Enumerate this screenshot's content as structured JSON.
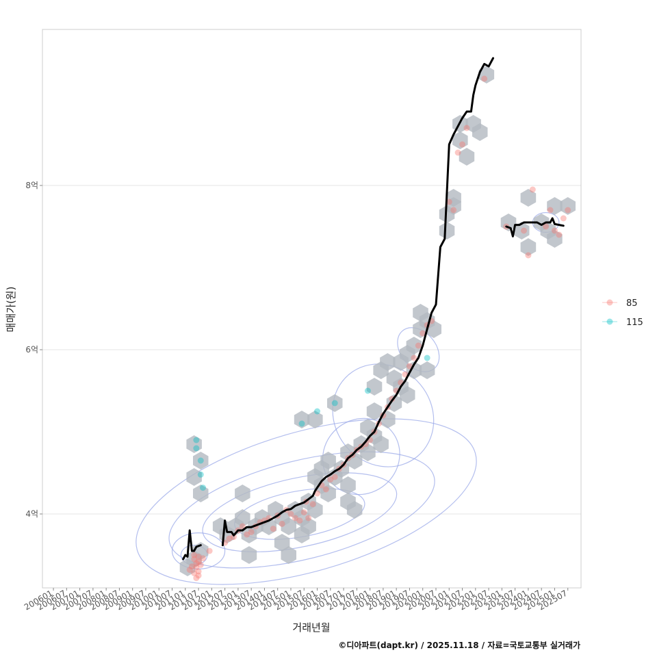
{
  "chart_data": {
    "type": "scatter",
    "title": "",
    "xlabel": "거래년월",
    "ylabel": "매매가(원)",
    "caption": "©디아파트(dapt.kr) / 2025.11.18 / 자료=국토교통부 실거래가",
    "x_unit": "months since 2006-01",
    "xlim": [
      -5,
      240
    ],
    "ylim": [
      3.1,
      9.9
    ],
    "x_ticks": [
      {
        "label": "200601",
        "x": 0
      },
      {
        "label": "200607",
        "x": 6
      },
      {
        "label": "200701",
        "x": 12
      },
      {
        "label": "200707",
        "x": 18
      },
      {
        "label": "200801",
        "x": 24
      },
      {
        "label": "200807",
        "x": 30
      },
      {
        "label": "200901",
        "x": 36
      },
      {
        "label": "200907",
        "x": 42
      },
      {
        "label": "201001",
        "x": 48
      },
      {
        "label": "201007",
        "x": 54
      },
      {
        "label": "201101",
        "x": 60
      },
      {
        "label": "201107",
        "x": 66
      },
      {
        "label": "201201",
        "x": 72
      },
      {
        "label": "201207",
        "x": 78
      },
      {
        "label": "201301",
        "x": 84
      },
      {
        "label": "201307",
        "x": 90
      },
      {
        "label": "201401",
        "x": 96
      },
      {
        "label": "201407",
        "x": 102
      },
      {
        "label": "201501",
        "x": 108
      },
      {
        "label": "201507",
        "x": 114
      },
      {
        "label": "201601",
        "x": 120
      },
      {
        "label": "201607",
        "x": 126
      },
      {
        "label": "201701",
        "x": 132
      },
      {
        "label": "201707",
        "x": 138
      },
      {
        "label": "201801",
        "x": 144
      },
      {
        "label": "201807",
        "x": 150
      },
      {
        "label": "201901",
        "x": 156
      },
      {
        "label": "201907",
        "x": 162
      },
      {
        "label": "202001",
        "x": 168
      },
      {
        "label": "202007",
        "x": 174
      },
      {
        "label": "202101",
        "x": 180
      },
      {
        "label": "202107",
        "x": 186
      },
      {
        "label": "202201",
        "x": 192
      },
      {
        "label": "202207",
        "x": 198
      },
      {
        "label": "202301",
        "x": 204
      },
      {
        "label": "202307",
        "x": 210
      },
      {
        "label": "202401",
        "x": 216
      },
      {
        "label": "202407",
        "x": 222
      },
      {
        "label": "202501",
        "x": 228
      },
      {
        "label": "202507",
        "x": 234
      }
    ],
    "y_ticks": [
      {
        "label": "4억",
        "value": 4
      },
      {
        "label": "6억",
        "value": 6
      },
      {
        "label": "8억",
        "value": 8
      }
    ],
    "legend": {
      "position": "right",
      "entries": [
        {
          "name": "85",
          "color": "#f8766d"
        },
        {
          "name": "115",
          "color": "#00bfc4"
        }
      ]
    },
    "colors": {
      "series_85": "#f8766d",
      "series_115": "#00bfc4",
      "hex": "#b3b9c0",
      "contour": "#9aa8e8",
      "trend": "#000000",
      "grid": "#e5e5e5",
      "panel_border": "#cccccc"
    },
    "hex_bins": [
      [
        64,
        4.85
      ],
      [
        67,
        4.65
      ],
      [
        64,
        4.45
      ],
      [
        67,
        4.25
      ],
      [
        64,
        3.45
      ],
      [
        67,
        3.55
      ],
      [
        61,
        3.35
      ],
      [
        76,
        3.85
      ],
      [
        79,
        3.75
      ],
      [
        83,
        3.85
      ],
      [
        86,
        3.95
      ],
      [
        86,
        4.25
      ],
      [
        89,
        3.75
      ],
      [
        92,
        3.85
      ],
      [
        89,
        3.5
      ],
      [
        95,
        3.95
      ],
      [
        98,
        3.85
      ],
      [
        101,
        4.05
      ],
      [
        104,
        3.95
      ],
      [
        107,
        3.85
      ],
      [
        104,
        3.65
      ],
      [
        107,
        3.5
      ],
      [
        110,
        4.05
      ],
      [
        113,
        3.95
      ],
      [
        116,
        4.15
      ],
      [
        119,
        4.05
      ],
      [
        113,
        3.75
      ],
      [
        116,
        3.85
      ],
      [
        119,
        4.45
      ],
      [
        122,
        4.35
      ],
      [
        125,
        4.25
      ],
      [
        122,
        4.55
      ],
      [
        125,
        4.65
      ],
      [
        128,
        4.45
      ],
      [
        131,
        4.55
      ],
      [
        134,
        4.75
      ],
      [
        137,
        4.65
      ],
      [
        140,
        4.85
      ],
      [
        134,
        4.35
      ],
      [
        137,
        4.05
      ],
      [
        134,
        4.15
      ],
      [
        113,
        5.15
      ],
      [
        119,
        5.15
      ],
      [
        128,
        5.35
      ],
      [
        143,
        5.05
      ],
      [
        146,
        4.95
      ],
      [
        149,
        4.85
      ],
      [
        143,
        4.75
      ],
      [
        146,
        5.25
      ],
      [
        152,
        5.15
      ],
      [
        155,
        5.35
      ],
      [
        146,
        5.55
      ],
      [
        149,
        5.75
      ],
      [
        152,
        5.85
      ],
      [
        155,
        5.65
      ],
      [
        158,
        5.55
      ],
      [
        161,
        5.45
      ],
      [
        158,
        5.85
      ],
      [
        161,
        5.95
      ],
      [
        164,
        6.05
      ],
      [
        167,
        6.25
      ],
      [
        170,
        6.35
      ],
      [
        167,
        6.45
      ],
      [
        170,
        5.75
      ],
      [
        173,
        6.25
      ],
      [
        164,
        5.75
      ],
      [
        179,
        7.65
      ],
      [
        182,
        7.75
      ],
      [
        179,
        7.45
      ],
      [
        182,
        7.85
      ],
      [
        185,
        8.55
      ],
      [
        188,
        8.35
      ],
      [
        185,
        8.75
      ],
      [
        191,
        8.75
      ],
      [
        194,
        8.65
      ],
      [
        197,
        9.35
      ],
      [
        207,
        7.55
      ],
      [
        213,
        7.45
      ],
      [
        216,
        7.85
      ],
      [
        216,
        7.25
      ],
      [
        222,
        7.55
      ],
      [
        225,
        7.45
      ],
      [
        228,
        7.35
      ],
      [
        228,
        7.75
      ],
      [
        234,
        7.75
      ]
    ],
    "series": [
      {
        "name": "85",
        "color": "#f8766d",
        "points": [
          [
            64,
            3.5
          ],
          [
            64,
            3.45
          ],
          [
            65,
            3.4
          ],
          [
            65,
            3.35
          ],
          [
            66,
            3.3
          ],
          [
            66,
            3.42
          ],
          [
            67,
            3.38
          ],
          [
            64,
            3.28
          ],
          [
            65,
            3.22
          ],
          [
            66,
            3.48
          ],
          [
            63,
            3.36
          ],
          [
            68,
            3.46
          ],
          [
            71,
            3.55
          ],
          [
            62,
            3.32
          ],
          [
            66,
            3.25
          ],
          [
            78,
            3.65
          ],
          [
            80,
            3.7
          ],
          [
            82,
            3.72
          ],
          [
            84,
            3.8
          ],
          [
            86,
            3.85
          ],
          [
            88,
            3.75
          ],
          [
            90,
            3.78
          ],
          [
            92,
            3.85
          ],
          [
            94,
            3.9
          ],
          [
            96,
            3.92
          ],
          [
            98,
            3.95
          ],
          [
            100,
            3.82
          ],
          [
            102,
            3.98
          ],
          [
            104,
            3.88
          ],
          [
            106,
            4.05
          ],
          [
            108,
            4.0
          ],
          [
            110,
            3.95
          ],
          [
            112,
            3.92
          ],
          [
            114,
            4.02
          ],
          [
            115,
            4.15
          ],
          [
            116,
            3.95
          ],
          [
            118,
            4.12
          ],
          [
            120,
            4.25
          ],
          [
            122,
            4.35
          ],
          [
            124,
            4.3
          ],
          [
            126,
            4.42
          ],
          [
            128,
            4.45
          ],
          [
            130,
            4.55
          ],
          [
            132,
            4.6
          ],
          [
            134,
            4.68
          ],
          [
            136,
            4.72
          ],
          [
            138,
            4.78
          ],
          [
            140,
            4.82
          ],
          [
            142,
            4.85
          ],
          [
            144,
            4.9
          ],
          [
            146,
            5.0
          ],
          [
            148,
            5.1
          ],
          [
            150,
            5.2
          ],
          [
            152,
            5.3
          ],
          [
            154,
            5.4
          ],
          [
            156,
            5.5
          ],
          [
            158,
            5.6
          ],
          [
            160,
            5.7
          ],
          [
            162,
            5.8
          ],
          [
            164,
            5.9
          ],
          [
            166,
            6.05
          ],
          [
            168,
            6.2
          ],
          [
            170,
            6.3
          ],
          [
            172,
            6.35
          ],
          [
            180,
            7.8
          ],
          [
            182,
            7.7
          ],
          [
            184,
            8.4
          ],
          [
            186,
            8.5
          ],
          [
            188,
            8.7
          ],
          [
            196,
            9.3
          ],
          [
            206,
            7.5
          ],
          [
            214,
            7.45
          ],
          [
            216,
            7.15
          ],
          [
            218,
            7.95
          ],
          [
            224,
            7.5
          ],
          [
            228,
            7.45
          ],
          [
            230,
            7.4
          ],
          [
            234,
            7.7
          ],
          [
            226,
            7.7
          ],
          [
            232,
            7.6
          ]
        ]
      },
      {
        "name": "115",
        "color": "#00bfc4",
        "points": [
          [
            65,
            4.9
          ],
          [
            65,
            4.8
          ],
          [
            67,
            4.65
          ],
          [
            67,
            4.48
          ],
          [
            68,
            4.32
          ],
          [
            113,
            5.1
          ],
          [
            120,
            5.25
          ],
          [
            128,
            5.35
          ],
          [
            143,
            5.5
          ],
          [
            170,
            5.9
          ]
        ]
      }
    ],
    "trend": [
      [
        59,
        3.45
      ],
      [
        60,
        3.5
      ],
      [
        61,
        3.48
      ],
      [
        62,
        3.8
      ],
      [
        63,
        3.55
      ],
      [
        64,
        3.55
      ],
      [
        65,
        3.6
      ],
      [
        67,
        3.62
      ],
      [
        70,
        3.62
      ],
      [
        74,
        3.64
      ],
      [
        77,
        3.62
      ],
      [
        78,
        3.92
      ],
      [
        79,
        3.78
      ],
      [
        81,
        3.78
      ],
      [
        82,
        3.74
      ],
      [
        84,
        3.8
      ],
      [
        86,
        3.8
      ],
      [
        88,
        3.84
      ],
      [
        90,
        3.84
      ],
      [
        92,
        3.86
      ],
      [
        94,
        3.88
      ],
      [
        96,
        3.9
      ],
      [
        98,
        3.92
      ],
      [
        100,
        3.95
      ],
      [
        102,
        3.98
      ],
      [
        104,
        4.02
      ],
      [
        106,
        4.05
      ],
      [
        108,
        4.06
      ],
      [
        110,
        4.1
      ],
      [
        112,
        4.12
      ],
      [
        114,
        4.14
      ],
      [
        116,
        4.18
      ],
      [
        118,
        4.22
      ],
      [
        119,
        4.28
      ],
      [
        120,
        4.32
      ],
      [
        122,
        4.4
      ],
      [
        124,
        4.45
      ],
      [
        126,
        4.48
      ],
      [
        128,
        4.52
      ],
      [
        130,
        4.55
      ],
      [
        132,
        4.6
      ],
      [
        134,
        4.68
      ],
      [
        136,
        4.72
      ],
      [
        138,
        4.78
      ],
      [
        140,
        4.82
      ],
      [
        142,
        4.88
      ],
      [
        144,
        4.95
      ],
      [
        146,
        5.0
      ],
      [
        148,
        5.12
      ],
      [
        150,
        5.22
      ],
      [
        152,
        5.3
      ],
      [
        154,
        5.38
      ],
      [
        156,
        5.45
      ],
      [
        158,
        5.55
      ],
      [
        160,
        5.62
      ],
      [
        162,
        5.72
      ],
      [
        164,
        5.82
      ],
      [
        166,
        5.9
      ],
      [
        168,
        6.05
      ],
      [
        170,
        6.25
      ],
      [
        172,
        6.45
      ],
      [
        174,
        6.55
      ],
      [
        176,
        7.25
      ],
      [
        178,
        7.35
      ],
      [
        180,
        8.5
      ],
      [
        182,
        8.62
      ],
      [
        184,
        8.72
      ],
      [
        186,
        8.82
      ],
      [
        188,
        8.9
      ],
      [
        190,
        8.9
      ],
      [
        191,
        9.1
      ],
      [
        192,
        9.22
      ],
      [
        194,
        9.38
      ],
      [
        196,
        9.48
      ],
      [
        198,
        9.45
      ],
      [
        200,
        9.55
      ],
      [
        203,
        7.5
      ],
      [
        206,
        7.5
      ],
      [
        208,
        7.48
      ],
      [
        209,
        7.38
      ],
      [
        210,
        7.52
      ],
      [
        212,
        7.52
      ],
      [
        214,
        7.55
      ],
      [
        216,
        7.55
      ],
      [
        218,
        7.55
      ],
      [
        220,
        7.55
      ],
      [
        222,
        7.52
      ],
      [
        224,
        7.55
      ],
      [
        226,
        7.55
      ],
      [
        227,
        7.6
      ],
      [
        228,
        7.53
      ],
      [
        230,
        7.52
      ],
      [
        232,
        7.51
      ]
    ],
    "contours": [
      {
        "cx": 112,
        "cy": 4.0,
        "rx": 30,
        "ry": 0.28,
        "rot": -10
      },
      {
        "cx": 112,
        "cy": 4.02,
        "rx": 45,
        "ry": 0.42,
        "rot": -12
      },
      {
        "cx": 113,
        "cy": 4.05,
        "rx": 62,
        "ry": 0.6,
        "rot": -14
      },
      {
        "cx": 115,
        "cy": 4.15,
        "rx": 80,
        "ry": 0.85,
        "rot": -16
      },
      {
        "cx": 64,
        "cy": 3.5,
        "rx": 6,
        "ry": 0.12,
        "rot": 0
      },
      {
        "cx": 66,
        "cy": 3.55,
        "rx": 12,
        "ry": 0.22,
        "rot": 0
      },
      {
        "cx": 140,
        "cy": 4.7,
        "rx": 18,
        "ry": 0.45,
        "rot": -40
      },
      {
        "cx": 150,
        "cy": 5.2,
        "rx": 22,
        "ry": 0.65,
        "rot": -40
      },
      {
        "cx": 166,
        "cy": 6.0,
        "rx": 8,
        "ry": 0.3,
        "rot": -40
      },
      {
        "cx": 224,
        "cy": 7.55,
        "rx": 6,
        "ry": 0.12,
        "rot": 0
      }
    ]
  }
}
